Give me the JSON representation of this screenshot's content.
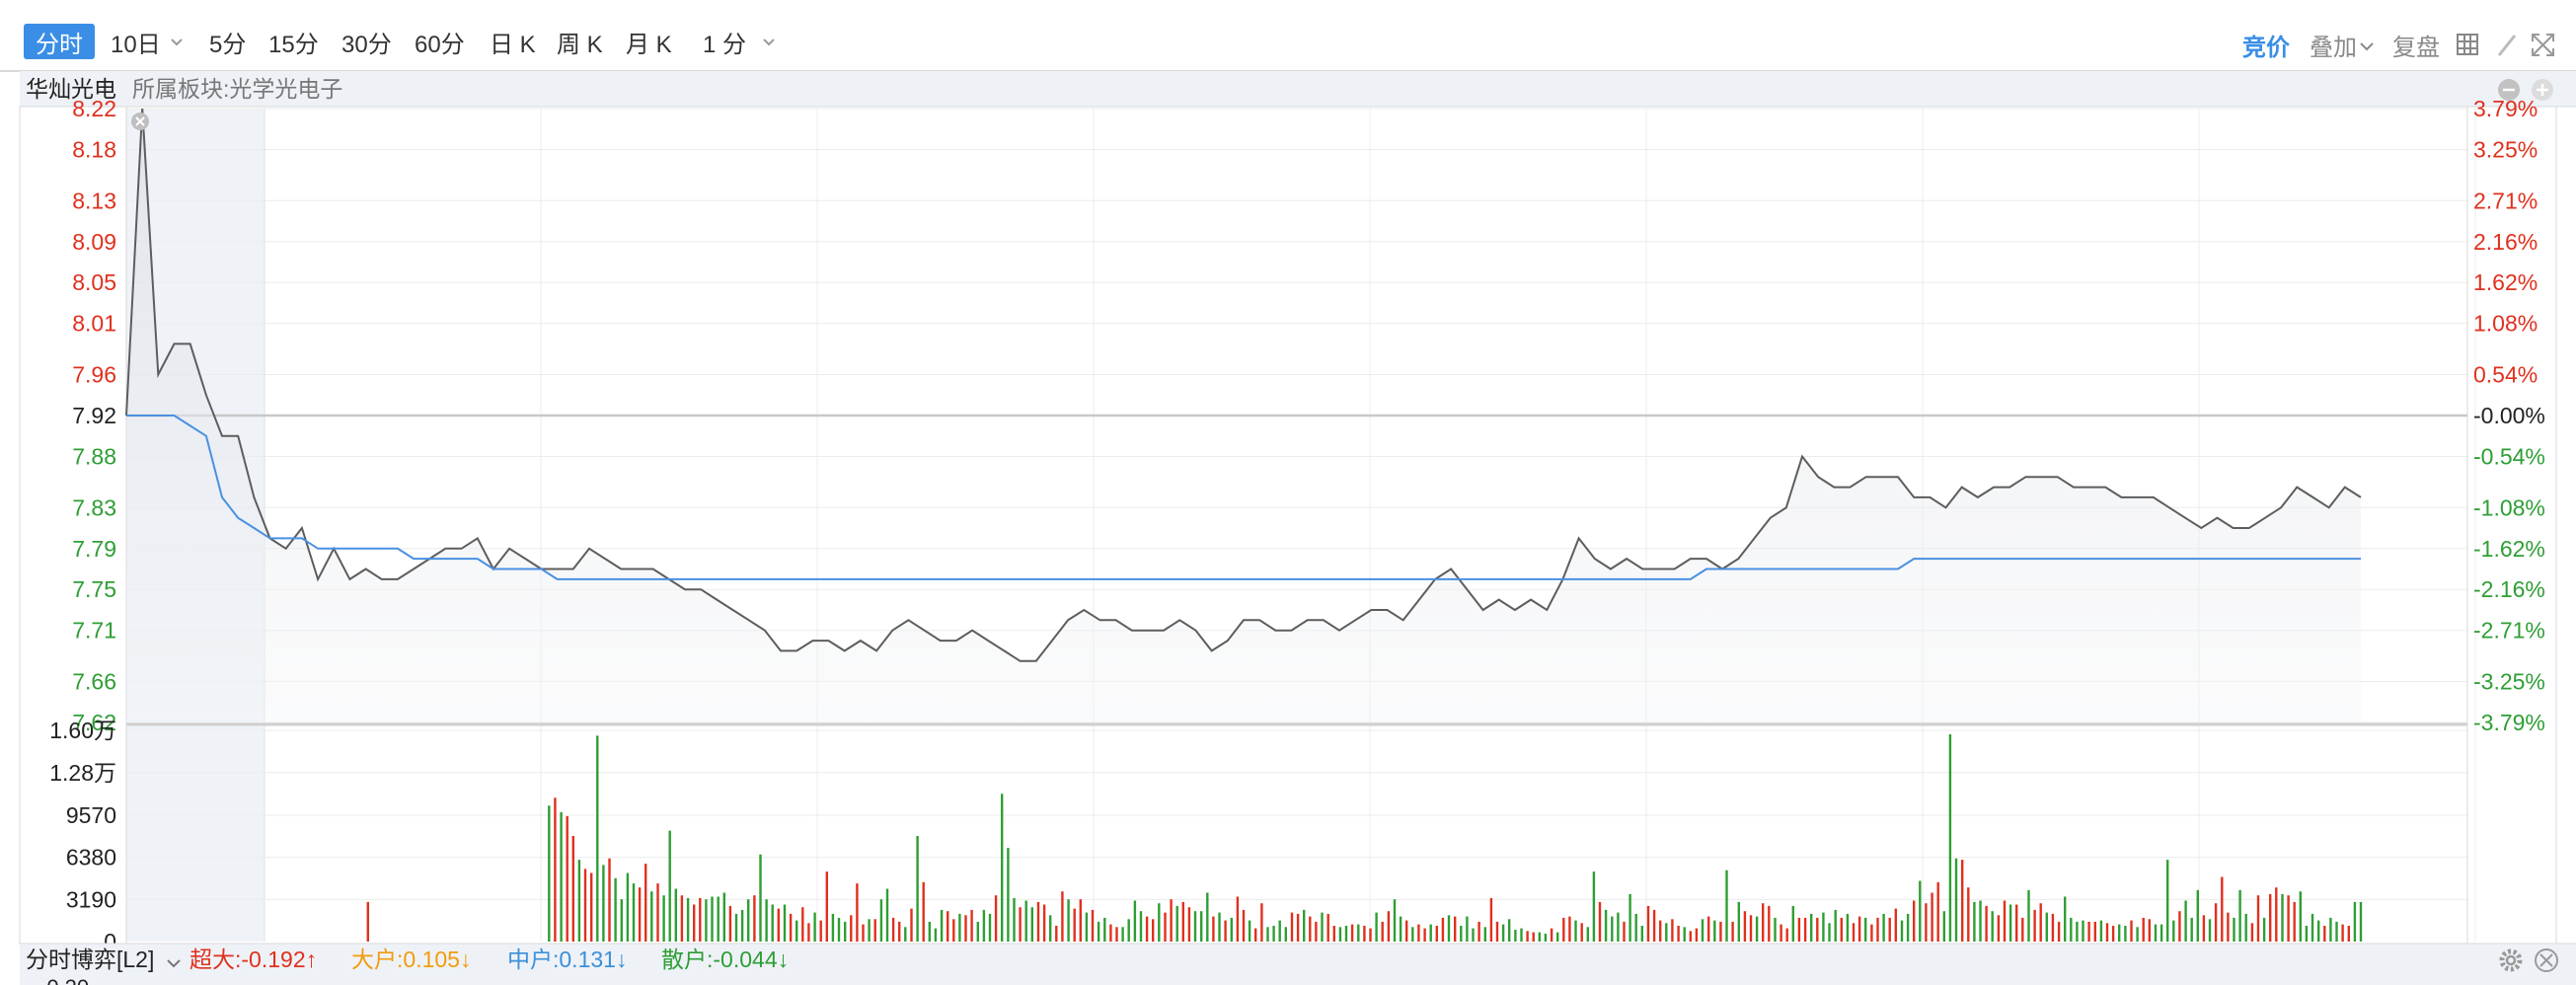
{
  "toolbar": {
    "periods": [
      {
        "label": "分时",
        "active": true
      },
      {
        "label": "10日",
        "dropdown": true
      },
      {
        "label": "5分"
      },
      {
        "label": "15分"
      },
      {
        "label": "30分"
      },
      {
        "label": "60分"
      },
      {
        "label": "日 K"
      },
      {
        "label": "周 K"
      },
      {
        "label": "月 K"
      },
      {
        "label": "1 分",
        "dropdown": true
      }
    ],
    "right": {
      "bid_price_label": "竞价",
      "overlay_label": "叠加",
      "replay_label": "复盘",
      "icons": [
        "grid-icon",
        "pen-icon",
        "fullscreen-icon"
      ]
    }
  },
  "info_bar": {
    "stock_name": "华灿光电",
    "sector": "所属板块:光学光电子",
    "controls": [
      "minus-circle-icon",
      "plus-circle-icon"
    ]
  },
  "price_axis": {
    "left": [
      "8.22",
      "8.18",
      "8.13",
      "8.09",
      "8.05",
      "8.01",
      "7.96",
      "7.92",
      "7.88",
      "7.83",
      "7.79",
      "7.75",
      "7.71",
      "7.66",
      "7.62"
    ],
    "right": [
      "3.79%",
      "3.25%",
      "2.71%",
      "2.16%",
      "1.62%",
      "1.08%",
      "0.54%",
      "-0.00%",
      "-0.54%",
      "-1.08%",
      "-1.62%",
      "-2.16%",
      "-2.71%",
      "-3.25%",
      "-3.79%"
    ]
  },
  "volume_axis": {
    "labels": [
      "1.60万",
      "1.28万",
      "9570",
      "6380",
      "3190",
      "0"
    ]
  },
  "bottom_bar": {
    "title": "分时博弈[L2]",
    "items": [
      {
        "label": "超大:-0.192↑",
        "color": "#e0301e"
      },
      {
        "label": "大户:0.105↓",
        "color": "#f29b0c"
      },
      {
        "label": "中户:0.131↓",
        "color": "#3b8fd9"
      },
      {
        "label": "散户:-0.044↓",
        "color": "#2e9e34"
      }
    ]
  },
  "colors": {
    "up": "#e0301e",
    "down": "#2e9e34",
    "price_line": "#5d5d5d",
    "avg_line": "#4a90e2",
    "accent": "#3a8ee6"
  },
  "chart_data": {
    "type": "line",
    "prev_close": 7.92,
    "ylim": [
      7.62,
      8.22
    ],
    "series": [
      {
        "values": [
          7.92,
          8.22,
          7.96,
          7.99,
          7.99,
          7.94,
          7.9,
          7.9,
          7.84,
          7.8,
          7.79,
          7.81,
          7.76,
          7.79,
          7.76,
          7.77,
          7.76,
          7.76,
          7.77,
          7.78,
          7.79,
          7.79,
          7.8,
          7.77,
          7.79,
          7.78,
          7.77,
          7.77,
          7.77,
          7.79,
          7.78,
          7.77,
          7.77,
          7.77,
          7.76,
          7.75,
          7.75,
          7.74,
          7.73,
          7.72,
          7.71,
          7.69,
          7.69,
          7.7,
          7.7,
          7.69,
          7.7,
          7.69,
          7.71,
          7.72,
          7.71,
          7.7,
          7.7,
          7.71,
          7.7,
          7.69,
          7.68,
          7.68,
          7.7,
          7.72,
          7.73,
          7.72,
          7.72,
          7.71,
          7.71,
          7.71,
          7.72,
          7.71,
          7.69,
          7.7,
          7.72,
          7.72,
          7.71,
          7.71,
          7.72,
          7.72,
          7.71,
          7.72,
          7.73,
          7.73,
          7.72,
          7.74,
          7.76,
          7.77,
          7.75,
          7.73,
          7.74,
          7.73,
          7.74,
          7.73,
          7.76,
          7.8,
          7.78,
          7.77,
          7.78,
          7.77,
          7.77,
          7.77,
          7.78,
          7.78,
          7.77,
          7.78,
          7.8,
          7.82,
          7.83,
          7.88,
          7.86,
          7.85,
          7.85,
          7.86,
          7.86,
          7.86,
          7.84,
          7.84,
          7.83,
          7.85,
          7.84,
          7.85,
          7.85,
          7.86,
          7.86,
          7.86,
          7.85,
          7.85,
          7.85,
          7.84,
          7.84,
          7.84,
          7.83,
          7.82,
          7.81,
          7.82,
          7.81,
          7.81,
          7.82,
          7.83,
          7.85,
          7.84,
          7.83,
          7.85,
          7.84
        ]
      },
      {
        "values": [
          7.92,
          7.92,
          7.92,
          7.92,
          7.91,
          7.9,
          7.84,
          7.82,
          7.81,
          7.8,
          7.8,
          7.8,
          7.79,
          7.79,
          7.79,
          7.79,
          7.79,
          7.79,
          7.78,
          7.78,
          7.78,
          7.78,
          7.78,
          7.77,
          7.77,
          7.77,
          7.77,
          7.76,
          7.76,
          7.76,
          7.76,
          7.76,
          7.76,
          7.76,
          7.76,
          7.76,
          7.76,
          7.76,
          7.76,
          7.76,
          7.76,
          7.76,
          7.76,
          7.76,
          7.76,
          7.76,
          7.76,
          7.76,
          7.76,
          7.76,
          7.76,
          7.76,
          7.76,
          7.76,
          7.76,
          7.76,
          7.76,
          7.76,
          7.76,
          7.76,
          7.76,
          7.76,
          7.76,
          7.76,
          7.76,
          7.76,
          7.76,
          7.76,
          7.76,
          7.76,
          7.76,
          7.76,
          7.76,
          7.76,
          7.76,
          7.76,
          7.76,
          7.76,
          7.76,
          7.76,
          7.76,
          7.76,
          7.76,
          7.76,
          7.76,
          7.76,
          7.76,
          7.76,
          7.76,
          7.76,
          7.76,
          7.76,
          7.76,
          7.76,
          7.76,
          7.76,
          7.76,
          7.76,
          7.76,
          7.77,
          7.77,
          7.77,
          7.77,
          7.77,
          7.77,
          7.77,
          7.77,
          7.77,
          7.77,
          7.77,
          7.77,
          7.77,
          7.78,
          7.78,
          7.78,
          7.78,
          7.78,
          7.78,
          7.78,
          7.78,
          7.78,
          7.78,
          7.78,
          7.78,
          7.78,
          7.78,
          7.78,
          7.78,
          7.78,
          7.78,
          7.78,
          7.78,
          7.78,
          7.78,
          7.78,
          7.78,
          7.78,
          7.78,
          7.78,
          7.78,
          7.78
        ]
      }
    ],
    "volume": {
      "ylim": [
        0,
        16000
      ],
      "values": [
        0,
        0,
        0,
        0,
        0,
        0,
        0,
        0,
        0,
        0,
        0,
        0,
        0,
        0,
        0,
        0,
        0,
        0,
        0,
        0,
        0,
        0,
        0,
        0,
        0,
        0,
        0,
        0,
        0,
        0,
        0,
        0,
        0,
        0,
        0,
        0,
        0,
        0,
        0,
        0,
        3000,
        0,
        0,
        0,
        0,
        0,
        0,
        0,
        0,
        0,
        0,
        0,
        0,
        0,
        0,
        0,
        0,
        0,
        0,
        0,
        0,
        0,
        0,
        0,
        0,
        0,
        0,
        0,
        0,
        0,
        10300,
        10900,
        9800,
        9500,
        8000,
        6200,
        5500,
        5200,
        15600,
        5800,
        6300,
        4800,
        3200,
        5200,
        4400,
        4100,
        5900,
        3800,
        4400,
        3500,
        8400,
        4000,
        3500,
        3300,
        2800,
        3300,
        3200,
        3400,
        3400,
        3700,
        2700,
        2100,
        2400,
        3200,
        3500,
        6600,
        3200,
        2800,
        2500,
        2800,
        2100,
        1600,
        2600,
        1400,
        2200,
        1600,
        5300,
        2100,
        1800,
        1500,
        2000,
        4400,
        1300,
        1700,
        1700,
        3200,
        4000,
        1800,
        1500,
        1100,
        2500,
        8000,
        4500,
        1500,
        1000,
        2400,
        2300,
        1700,
        2100,
        2000,
        2400,
        1500,
        2400,
        2100,
        3500,
        11200,
        7100,
        3300,
        2600,
        3100,
        2600,
        3000,
        2800,
        2000,
        1200,
        3800,
        3200,
        2500,
        3200,
        2200,
        2400,
        1500,
        1800,
        1300,
        1100,
        1100,
        1700,
        3100,
        2300,
        1900,
        1700,
        2900,
        2200,
        3200,
        2700,
        3000,
        2600,
        2300,
        2300,
        3700,
        1900,
        2200,
        1600,
        1800,
        3400,
        2400,
        1600,
        1000,
        2900,
        1100,
        1200,
        1600,
        1100,
        2200,
        2100,
        2400,
        1900,
        1500,
        2200,
        2100,
        1200,
        1100,
        1200,
        1300,
        1300,
        1200,
        1000,
        2200,
        1500,
        2300,
        3200,
        1900,
        1600,
        1100,
        1300,
        1000,
        1300,
        1200,
        1800,
        2000,
        1900,
        1200,
        1900,
        1000,
        1500,
        1100,
        3300,
        1500,
        1300,
        1700,
        900,
        1000,
        800,
        700,
        700,
        600,
        1000,
        700,
        1800,
        1900,
        1600,
        1400,
        1100,
        5300,
        3000,
        2400,
        1900,
        2200,
        1500,
        3600,
        2100,
        1200,
        2700,
        2400,
        1600,
        1400,
        1700,
        1200,
        1100,
        800,
        1000,
        1700,
        1900,
        1600,
        1500,
        5400,
        1500,
        3000,
        2300,
        2000,
        1900,
        2900,
        2700,
        1800,
        1300,
        1000,
        2700,
        1800,
        1800,
        2100,
        1800,
        2200,
        1400,
        2400,
        1800,
        2100,
        1400,
        1900,
        1800,
        1300,
        1800,
        2100,
        1800,
        2500,
        1600,
        2100,
        3100,
        4600,
        2900,
        3700,
        4500,
        2300,
        15700,
        6300,
        6200,
        4100,
        3000,
        3100,
        2700,
        2300,
        2000,
        3100,
        2800,
        2800,
        1800,
        3900,
        2400,
        2900,
        2200,
        2100,
        1500,
        3400,
        1800,
        1500,
        1600,
        1500,
        1500,
        1600,
        1400,
        1200,
        1300,
        1200,
        1600,
        1100,
        1800,
        1700,
        1300,
        1300,
        6200,
        1600,
        2300,
        3100,
        1800,
        3900,
        2000,
        1700,
        2900,
        4900,
        2200,
        1800,
        3900,
        2100,
        1400,
        3500,
        1800,
        3600,
        4100,
        3600,
        3500,
        3000,
        3800,
        1200,
        2100,
        1600,
        1200,
        1800,
        1500,
        1300,
        1200,
        3000,
        3000
      ]
    }
  }
}
